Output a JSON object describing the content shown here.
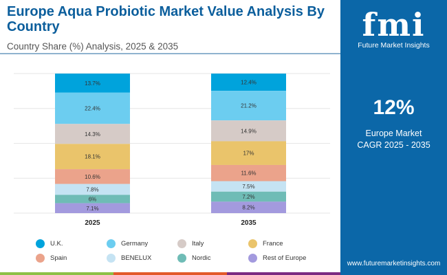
{
  "header": {
    "title": "Europe Aqua Probiotic Market Value Analysis By Country",
    "subtitle": "Country Share (%) Analysis, 2025 & 2035"
  },
  "panel": {
    "logo_mark": "fmi",
    "logo_name": "Future Market Insights",
    "cagr_value": "12%",
    "cagr_label_1": "Europe Market",
    "cagr_label_2": "CAGR 2025 - 2035",
    "website": "www.futuremarketinsights.com"
  },
  "chart_data": {
    "type": "bar",
    "stacked": true,
    "title": "Europe Aqua Probiotic Market Value Analysis By Country",
    "categories": [
      "2025",
      "2035"
    ],
    "ylim": [
      0,
      100
    ],
    "grid": true,
    "legend_position": "bottom",
    "series": [
      {
        "name": "U.K.",
        "color": "#00a3dc",
        "values": [
          13.7,
          12.4
        ],
        "labels": [
          "13.7%",
          "12.4%"
        ]
      },
      {
        "name": "Germany",
        "color": "#6ccdf0",
        "values": [
          22.4,
          21.2
        ],
        "labels": [
          "22.4%",
          "21.2%"
        ]
      },
      {
        "name": "Italy",
        "color": "#d6cbc7",
        "values": [
          14.3,
          14.9
        ],
        "labels": [
          "14.3%",
          "14.9%"
        ]
      },
      {
        "name": "France",
        "color": "#eac46b",
        "values": [
          18.1,
          17
        ],
        "labels": [
          "18.1%",
          "17%"
        ]
      },
      {
        "name": "Spain",
        "color": "#eba38b",
        "values": [
          10.6,
          11.6
        ],
        "labels": [
          "10.6%",
          "11.6%"
        ]
      },
      {
        "name": "BENELUX",
        "color": "#c5e3f3",
        "values": [
          7.8,
          7.5
        ],
        "labels": [
          "7.8%",
          "7.5%"
        ]
      },
      {
        "name": "Nordic",
        "color": "#6fbcb6",
        "values": [
          6,
          7.2
        ],
        "labels": [
          "6%",
          "7.2%"
        ]
      },
      {
        "name": "Rest of Europe",
        "color": "#a39ade",
        "values": [
          7.1,
          8.2
        ],
        "labels": [
          "7.1%",
          "8.2%"
        ]
      }
    ]
  }
}
